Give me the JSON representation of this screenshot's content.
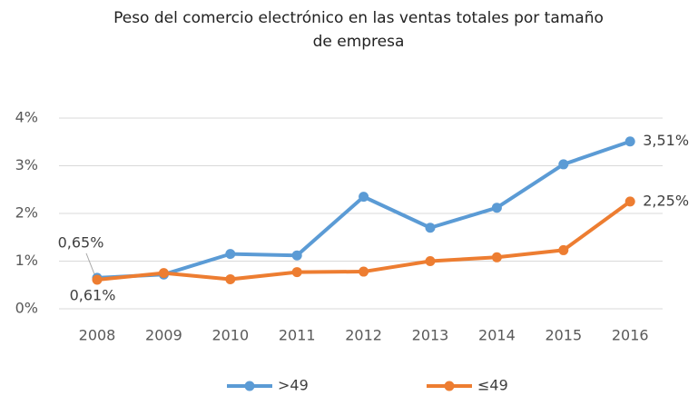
{
  "chart_data": {
    "type": "line",
    "title": [
      "Peso del comercio electrónico en las  ventas totales por tamaño",
      "de empresa"
    ],
    "categories": [
      "2008",
      "2009",
      "2010",
      "2011",
      "2012",
      "2013",
      "2014",
      "2015",
      "2016"
    ],
    "series": [
      {
        "name": ">49",
        "color": "#5b9bd5",
        "values": [
          0.65,
          0.72,
          1.15,
          1.12,
          2.35,
          1.7,
          2.12,
          3.03,
          3.51
        ],
        "value_labels": [
          "0,65%",
          null,
          null,
          null,
          null,
          null,
          null,
          null,
          "3,51%"
        ]
      },
      {
        "name": "≤49",
        "color": "#ed7d31",
        "values": [
          0.61,
          0.75,
          0.62,
          0.77,
          0.78,
          1.0,
          1.08,
          1.23,
          2.25
        ],
        "value_labels": [
          "0,61%",
          null,
          null,
          null,
          null,
          null,
          null,
          null,
          "2,25%"
        ]
      }
    ],
    "ylim": [
      0,
      4
    ],
    "yticks": [
      {
        "value": 0,
        "label": "0%"
      },
      {
        "value": 1,
        "label": "1%"
      },
      {
        "value": 2,
        "label": "2%"
      },
      {
        "value": 3,
        "label": "3%"
      },
      {
        "value": 4,
        "label": "4%"
      }
    ],
    "grid": true,
    "legend": "bottom"
  }
}
